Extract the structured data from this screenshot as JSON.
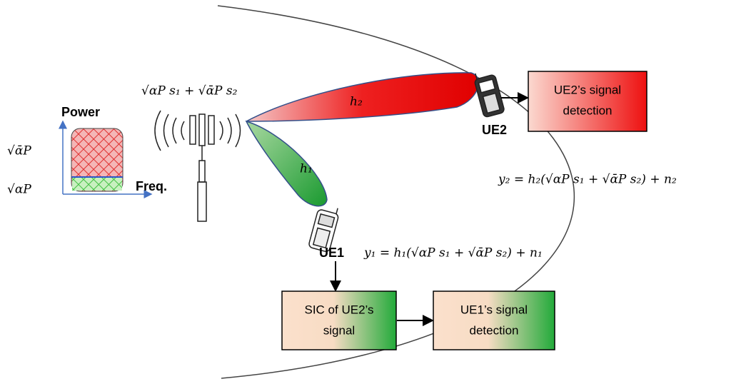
{
  "axes": {
    "y_label": "Power",
    "x_label": "Freq.",
    "upper_level": "√ᾱP",
    "lower_level": "√αP"
  },
  "transmit_signal": "√αP s₁ + √ᾱP s₂",
  "channels": {
    "h2": "h₂",
    "h1": "h₁"
  },
  "users": {
    "ue2": "UE2",
    "ue1": "UE1"
  },
  "equations": {
    "y2": "y₂ = h₂(√αP s₁ + √ᾱP s₂) + n₂",
    "y1": "y₁ = h₁(√αP s₁ + √ᾱP s₂) + n₁"
  },
  "boxes": {
    "ue2_detection": [
      "UE2’s signal",
      "detection"
    ],
    "sic": [
      "SIC of UE2’s",
      "signal"
    ],
    "ue1_detection": [
      "UE1’s signal",
      "detection"
    ]
  }
}
